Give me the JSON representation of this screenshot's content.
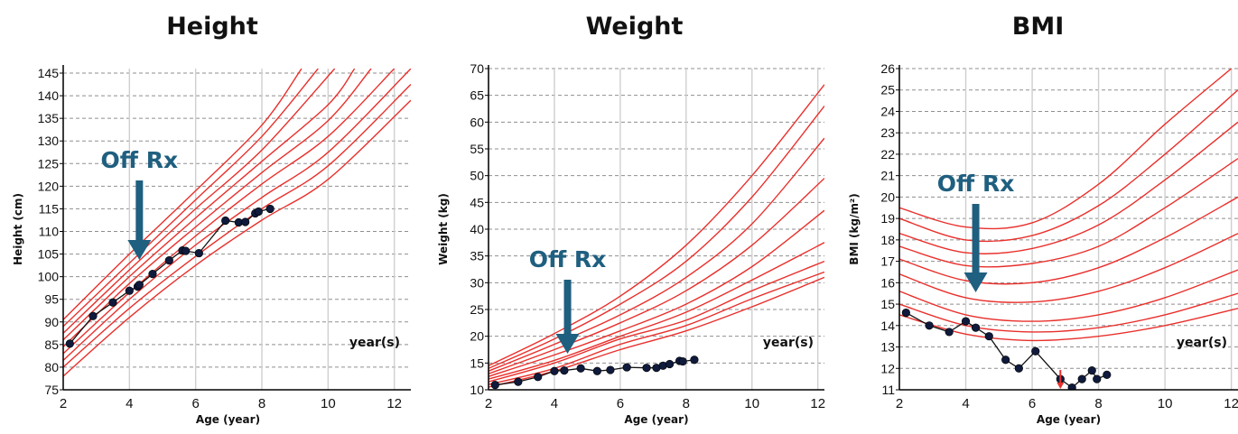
{
  "chart_data": [
    {
      "type": "line",
      "title": "Height",
      "xlabel": "Age (year)",
      "ylabel": "Height (cm)",
      "xlim": [
        2,
        12.5
      ],
      "ylim": [
        75,
        146
      ],
      "xticks": [
        2,
        4,
        6,
        8,
        10,
        12
      ],
      "yticks": [
        75,
        80,
        85,
        90,
        95,
        100,
        105,
        110,
        115,
        120,
        125,
        130,
        135,
        140,
        145
      ],
      "grid": true,
      "unit_label": "year(s)",
      "annotation": "Off Rx",
      "annotation_age": 4.3,
      "reference_color": "#e8302c",
      "patient_color": "#0f1a3c",
      "reference_curves": [
        {
          "x": [
            2,
            4,
            6,
            8,
            10,
            12.5
          ],
          "y": [
            78,
            91,
            102.5,
            112.5,
            121.5,
            139
          ]
        },
        {
          "x": [
            2,
            4,
            6,
            8,
            10,
            12.5
          ],
          "y": [
            80,
            93,
            104.5,
            115,
            124.5,
            142.5
          ]
        },
        {
          "x": [
            2,
            4,
            6,
            8,
            10,
            12.5
          ],
          "y": [
            81.5,
            95,
            107,
            117.5,
            127.5,
            146
          ]
        },
        {
          "x": [
            2,
            4,
            6,
            8,
            10,
            12
          ],
          "y": [
            83,
            96.5,
            109,
            120.5,
            131,
            146
          ]
        },
        {
          "x": [
            2,
            4,
            6,
            8,
            10,
            11.3
          ],
          "y": [
            84.5,
            98.5,
            111,
            123,
            134.5,
            146
          ]
        },
        {
          "x": [
            2,
            4,
            6,
            8,
            10,
            10.8
          ],
          "y": [
            86,
            100,
            113,
            125.5,
            138,
            146
          ]
        },
        {
          "x": [
            2,
            4,
            6,
            8,
            10.2
          ],
          "y": [
            87.5,
            101.5,
            115,
            128,
            146
          ]
        },
        {
          "x": [
            2,
            4,
            6,
            8,
            9.7
          ],
          "y": [
            89,
            103,
            117,
            131,
            146
          ]
        },
        {
          "x": [
            2,
            4,
            6,
            8,
            9.2
          ],
          "y": [
            90.5,
            105,
            119,
            133.5,
            146
          ]
        }
      ],
      "patient": {
        "x": [
          2.2,
          2.9,
          3.5,
          4.0,
          4.25,
          4.3,
          4.7,
          5.2,
          5.6,
          5.7,
          6.1,
          6.9,
          7.3,
          7.5,
          7.8,
          7.9,
          8.25
        ],
        "y": [
          85.2,
          91.3,
          94.3,
          96.9,
          97.8,
          98.2,
          100.6,
          103.6,
          105.8,
          105.7,
          105.2,
          112.4,
          112.0,
          112.1,
          114.0,
          114.4,
          115.0
        ]
      }
    },
    {
      "type": "line",
      "title": "Weight",
      "xlabel": "Age (year)",
      "ylabel": "Weight (kg)",
      "xlim": [
        2,
        12.2
      ],
      "ylim": [
        10,
        70
      ],
      "xticks": [
        2,
        4,
        6,
        8,
        10,
        12
      ],
      "yticks": [
        10,
        15,
        20,
        25,
        30,
        35,
        40,
        45,
        50,
        55,
        60,
        65,
        70
      ],
      "grid": true,
      "unit_label": "year(s)",
      "annotation": "Off Rx",
      "annotation_age": 4.4,
      "reference_color": "#e8302c",
      "patient_color": "#0f1a3c",
      "reference_curves": [
        {
          "x": [
            2,
            4,
            6,
            8,
            10,
            12.2
          ],
          "y": [
            10.5,
            13.5,
            17.5,
            21,
            25.5,
            31
          ]
        },
        {
          "x": [
            2,
            4,
            6,
            8,
            10,
            12.2
          ],
          "y": [
            11,
            14,
            18.5,
            22,
            27,
            32
          ]
        },
        {
          "x": [
            2,
            4,
            6,
            8,
            10,
            12.2
          ],
          "y": [
            11.5,
            15,
            19.5,
            23,
            28.5,
            34
          ]
        },
        {
          "x": [
            2,
            4,
            6,
            8,
            10,
            12.2
          ],
          "y": [
            12,
            15.5,
            20,
            24.5,
            30.5,
            37.5
          ]
        },
        {
          "x": [
            2,
            4,
            6,
            8,
            10,
            12.2
          ],
          "y": [
            12.5,
            16.5,
            21,
            26,
            33,
            43.5
          ]
        },
        {
          "x": [
            2,
            4,
            6,
            8,
            10,
            12.2
          ],
          "y": [
            13,
            17.5,
            22.5,
            28.5,
            37,
            49.5
          ]
        },
        {
          "x": [
            2,
            4,
            6,
            8,
            10,
            12.2
          ],
          "y": [
            13.5,
            18.5,
            24,
            31,
            41,
            57
          ]
        },
        {
          "x": [
            2,
            4,
            6,
            8,
            10,
            12.2
          ],
          "y": [
            14,
            19.5,
            26,
            34,
            46,
            63
          ]
        },
        {
          "x": [
            2,
            4,
            6,
            8,
            10,
            12.2
          ],
          "y": [
            14.5,
            20.5,
            27.5,
            37,
            50,
            67
          ]
        }
      ],
      "patient": {
        "x": [
          2.2,
          2.9,
          3.5,
          4.0,
          4.3,
          4.8,
          5.3,
          5.7,
          6.2,
          6.8,
          7.1,
          7.3,
          7.5,
          7.8,
          7.9,
          8.25
        ],
        "y": [
          10.9,
          11.5,
          12.4,
          13.5,
          13.6,
          14.0,
          13.5,
          13.7,
          14.2,
          14.1,
          14.1,
          14.5,
          14.8,
          15.4,
          15.3,
          15.6
        ]
      }
    },
    {
      "type": "line",
      "title": "BMI",
      "xlabel": "Age (year)",
      "ylabel": "BMI (kg/m²)",
      "xlim": [
        2,
        12.2
      ],
      "ylim": [
        11,
        26
      ],
      "xticks": [
        2,
        4,
        6,
        8,
        10,
        12
      ],
      "yticks": [
        11,
        12,
        13,
        14,
        15,
        16,
        17,
        18,
        19,
        20,
        21,
        22,
        23,
        24,
        25,
        26
      ],
      "grid": true,
      "unit_label": "year(s)",
      "annotation": "Off Rx",
      "annotation_age": 4.3,
      "marker_age": 6.85,
      "reference_color": "#e8302c",
      "patient_color": "#0f1a3c",
      "reference_curves": [
        {
          "x": [
            2,
            4,
            6,
            8,
            10,
            12.2
          ],
          "y": [
            14.5,
            13.6,
            13.3,
            13.5,
            14.0,
            14.8
          ]
        },
        {
          "x": [
            2,
            4,
            6,
            8,
            10,
            12.2
          ],
          "y": [
            15.0,
            14.0,
            13.7,
            13.9,
            14.5,
            15.5
          ]
        },
        {
          "x": [
            2,
            4,
            6,
            8,
            10,
            12.2
          ],
          "y": [
            15.6,
            14.5,
            14.2,
            14.5,
            15.3,
            16.6
          ]
        },
        {
          "x": [
            2,
            4,
            6,
            8,
            10,
            12.2
          ],
          "y": [
            16.4,
            15.3,
            15.1,
            15.6,
            16.7,
            18.3
          ]
        },
        {
          "x": [
            2,
            4,
            6,
            8,
            10,
            12.2
          ],
          "y": [
            17.1,
            16.1,
            16.0,
            16.7,
            18.1,
            20.0
          ]
        },
        {
          "x": [
            2,
            4,
            6,
            8,
            10,
            12.2
          ],
          "y": [
            17.7,
            16.8,
            16.9,
            17.7,
            19.5,
            21.8
          ]
        },
        {
          "x": [
            2,
            4,
            6,
            8,
            10,
            12.2
          ],
          "y": [
            18.3,
            17.4,
            17.6,
            18.7,
            20.8,
            23.5
          ]
        },
        {
          "x": [
            2,
            4,
            6,
            8,
            10,
            12.2
          ],
          "y": [
            19.0,
            18.0,
            18.2,
            19.6,
            22.0,
            25.0
          ]
        },
        {
          "x": [
            2,
            4,
            6,
            8,
            10,
            12
          ],
          "y": [
            19.5,
            18.6,
            18.8,
            20.6,
            23.4,
            26.0
          ]
        }
      ],
      "patient": {
        "x": [
          2.2,
          2.9,
          3.5,
          4.0,
          4.3,
          4.7,
          5.2,
          5.6,
          6.1,
          6.85,
          7.2,
          7.5,
          7.8,
          7.95,
          8.25
        ],
        "y": [
          14.6,
          14.0,
          13.7,
          14.2,
          13.9,
          13.5,
          12.4,
          12.0,
          12.8,
          11.5,
          11.1,
          11.5,
          11.9,
          11.5,
          11.7
        ]
      }
    }
  ]
}
